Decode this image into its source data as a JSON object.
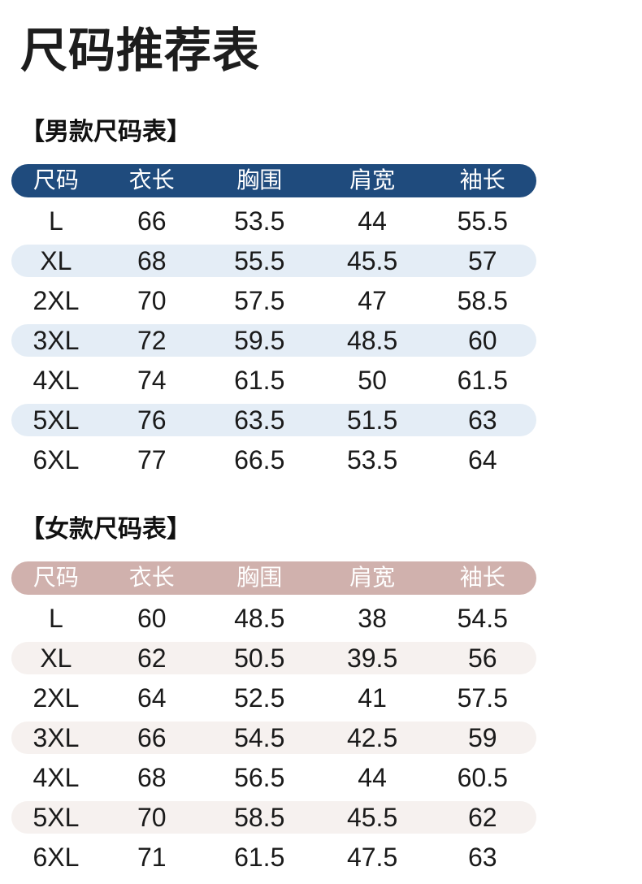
{
  "page": {
    "title": "尺码推荐表",
    "background_color": "#ffffff",
    "text_color": "#1a1a1a"
  },
  "tables": [
    {
      "id": "men",
      "section_title": "【男款尺码表】",
      "header_color": "#1f4b7d",
      "header_text_color": "#ffffff",
      "alt_row_color": "#e4edf6",
      "columns": [
        "尺码",
        "衣长",
        "胸围",
        "肩宽",
        "袖长"
      ],
      "column_names": [
        "size",
        "length",
        "chest",
        "shoulder",
        "sleeve"
      ],
      "rows": [
        [
          "L",
          "66",
          "53.5",
          "44",
          "55.5"
        ],
        [
          "XL",
          "68",
          "55.5",
          "45.5",
          "57"
        ],
        [
          "2XL",
          "70",
          "57.5",
          "47",
          "58.5"
        ],
        [
          "3XL",
          "72",
          "59.5",
          "48.5",
          "60"
        ],
        [
          "4XL",
          "74",
          "61.5",
          "50",
          "61.5"
        ],
        [
          "5XL",
          "76",
          "63.5",
          "51.5",
          "63"
        ],
        [
          "6XL",
          "77",
          "66.5",
          "53.5",
          "64"
        ]
      ]
    },
    {
      "id": "women",
      "section_title": "【女款尺码表】",
      "header_color": "#d0b1ad",
      "header_text_color": "#ffffff",
      "alt_row_color": "#f6f1ef",
      "columns": [
        "尺码",
        "衣长",
        "胸围",
        "肩宽",
        "袖长"
      ],
      "column_names": [
        "size",
        "length",
        "chest",
        "shoulder",
        "sleeve"
      ],
      "rows": [
        [
          "L",
          "60",
          "48.5",
          "38",
          "54.5"
        ],
        [
          "XL",
          "62",
          "50.5",
          "39.5",
          "56"
        ],
        [
          "2XL",
          "64",
          "52.5",
          "41",
          "57.5"
        ],
        [
          "3XL",
          "66",
          "54.5",
          "42.5",
          "59"
        ],
        [
          "4XL",
          "68",
          "56.5",
          "44",
          "60.5"
        ],
        [
          "5XL",
          "70",
          "58.5",
          "45.5",
          "62"
        ],
        [
          "6XL",
          "71",
          "61.5",
          "47.5",
          "63"
        ]
      ]
    }
  ]
}
